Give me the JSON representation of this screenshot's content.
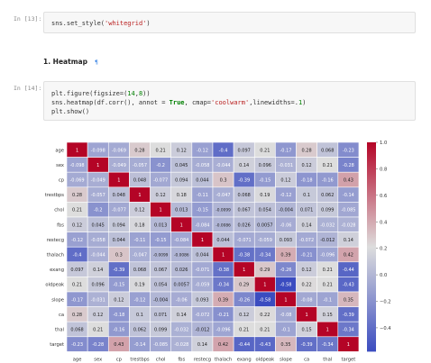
{
  "cells": [
    {
      "prompt": "In [13]:",
      "code": [
        [
          {
            "t": "sns.set_style("
          },
          {
            "t": "'whitegrid'",
            "c": "kw-str"
          },
          {
            "t": ")"
          }
        ]
      ]
    },
    {
      "heading": "1. Heatmap",
      "anchor": "¶"
    },
    {
      "prompt": "In [14]:",
      "code": [
        [
          {
            "t": "plt.figure(figsize=("
          },
          {
            "t": "14",
            "c": "kw-num"
          },
          {
            "t": ","
          },
          {
            "t": "8",
            "c": "kw-num"
          },
          {
            "t": "))"
          }
        ],
        [
          {
            "t": "sns.heatmap(df.corr(), annot = "
          },
          {
            "t": "True",
            "c": "kw-bool"
          },
          {
            "t": ", cmap="
          },
          {
            "t": "'coolwarm'",
            "c": "kw-str"
          },
          {
            "t": ",linewidths=."
          },
          {
            "t": "1",
            "c": "kw-num"
          },
          {
            "t": ")"
          }
        ],
        [
          {
            "t": "plt.show()"
          }
        ]
      ]
    }
  ],
  "chart_data": {
    "type": "heatmap",
    "labels": [
      "age",
      "sex",
      "cp",
      "trestbps",
      "chol",
      "fbs",
      "restecg",
      "thalach",
      "exang",
      "oldpeak",
      "slope",
      "ca",
      "thal",
      "target"
    ],
    "annotations": [
      [
        "1",
        "-0.098",
        "-0.069",
        "0.28",
        "0.21",
        "0.12",
        "-0.12",
        "-0.4",
        "0.097",
        "0.21",
        "-0.17",
        "0.28",
        "0.068",
        "-0.23"
      ],
      [
        "-0.098",
        "1",
        "-0.049",
        "-0.057",
        "-0.2",
        "0.045",
        "-0.058",
        "-0.044",
        "0.14",
        "0.096",
        "-0.031",
        "0.12",
        "0.21",
        "-0.28"
      ],
      [
        "-0.069",
        "-0.049",
        "1",
        "0.048",
        "-0.077",
        "0.094",
        "0.044",
        "0.3",
        "-0.39",
        "-0.15",
        "0.12",
        "-0.18",
        "-0.16",
        "0.43"
      ],
      [
        "0.28",
        "-0.057",
        "0.048",
        "1",
        "0.12",
        "0.18",
        "-0.11",
        "-0.047",
        "0.068",
        "0.19",
        "-0.12",
        "0.1",
        "0.062",
        "-0.14"
      ],
      [
        "0.21",
        "-0.2",
        "-0.077",
        "0.12",
        "1",
        "0.013",
        "-0.15",
        "-0.0099",
        "0.067",
        "0.054",
        "-0.004",
        "0.071",
        "0.099",
        "-0.085"
      ],
      [
        "0.12",
        "0.045",
        "0.094",
        "0.18",
        "0.013",
        "1",
        "-0.084",
        "-0.0086",
        "0.026",
        "0.0057",
        "-0.06",
        "0.14",
        "-0.032",
        "-0.028"
      ],
      [
        "-0.12",
        "-0.058",
        "0.044",
        "-0.11",
        "-0.15",
        "-0.084",
        "1",
        "0.044",
        "-0.071",
        "-0.059",
        "0.093",
        "-0.072",
        "-0.012",
        "0.14"
      ],
      [
        "-0.4",
        "-0.044",
        "0.3",
        "-0.047",
        "-0.0099",
        "-0.0086",
        "0.044",
        "1",
        "-0.38",
        "-0.34",
        "0.39",
        "-0.21",
        "-0.096",
        "0.42"
      ],
      [
        "0.097",
        "0.14",
        "-0.39",
        "0.068",
        "0.067",
        "0.026",
        "-0.071",
        "-0.38",
        "1",
        "0.29",
        "-0.26",
        "0.12",
        "0.21",
        "-0.44"
      ],
      [
        "0.21",
        "0.096",
        "-0.15",
        "0.19",
        "0.054",
        "0.0057",
        "-0.059",
        "-0.34",
        "0.29",
        "1",
        "-0.58",
        "0.22",
        "0.21",
        "-0.43"
      ],
      [
        "-0.17",
        "-0.031",
        "0.12",
        "-0.12",
        "-0.004",
        "-0.06",
        "0.093",
        "0.39",
        "-0.26",
        "-0.58",
        "1",
        "-0.08",
        "-0.1",
        "0.35"
      ],
      [
        "0.28",
        "0.12",
        "-0.18",
        "0.1",
        "0.071",
        "0.14",
        "-0.072",
        "-0.21",
        "0.12",
        "0.22",
        "-0.08",
        "1",
        "0.15",
        "-0.39"
      ],
      [
        "0.068",
        "0.21",
        "-0.16",
        "0.062",
        "0.099",
        "-0.032",
        "-0.012",
        "-0.096",
        "0.21",
        "0.21",
        "-0.1",
        "0.15",
        "1",
        "-0.34"
      ],
      [
        "-0.23",
        "-0.28",
        "0.43",
        "-0.14",
        "-0.085",
        "-0.028",
        "0.14",
        "0.42",
        "-0.44",
        "-0.43",
        "0.35",
        "-0.39",
        "-0.34",
        "1"
      ]
    ],
    "colorbar": {
      "min": -0.58,
      "max": 1.0,
      "ticks": [
        "1.0",
        "0.8",
        "0.6",
        "0.4",
        "0.2",
        "0.0",
        "−0.2",
        "−0.4"
      ],
      "tick_values": [
        1.0,
        0.8,
        0.6,
        0.4,
        0.2,
        0.0,
        -0.2,
        -0.4
      ]
    },
    "cmap": "coolwarm",
    "colors": {
      "low": "#3b4cc0",
      "mid": "#dddddd",
      "high": "#b40426"
    }
  }
}
